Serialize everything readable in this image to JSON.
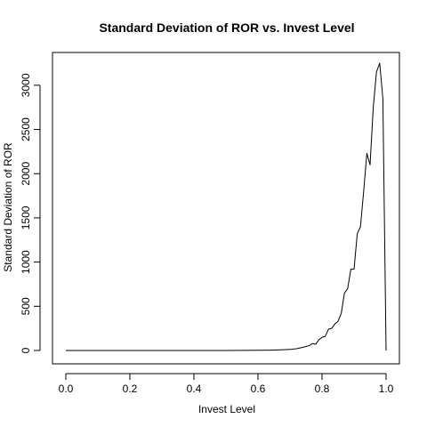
{
  "chart_data": {
    "type": "line",
    "title": "Standard Deviation of ROR vs. Invest Level",
    "xlabel": "Invest Level",
    "ylabel": "Standard Deviation of ROR",
    "xlim": [
      0.0,
      1.0
    ],
    "ylim": [
      0,
      3250
    ],
    "x_ticks": [
      "0.0",
      "0.2",
      "0.4",
      "0.6",
      "0.8",
      "1.0"
    ],
    "y_ticks": [
      "0",
      "500",
      "1000",
      "1500",
      "2000",
      "2500",
      "3000"
    ],
    "grid": false,
    "legend": "none",
    "series": [
      {
        "color": "#000000",
        "x": [
          0.0,
          0.1,
          0.2,
          0.3,
          0.4,
          0.5,
          0.55,
          0.6,
          0.64,
          0.66,
          0.68,
          0.7,
          0.72,
          0.74,
          0.76,
          0.77,
          0.78,
          0.79,
          0.8,
          0.81,
          0.82,
          0.83,
          0.84,
          0.85,
          0.86,
          0.87,
          0.88,
          0.89,
          0.9,
          0.91,
          0.92,
          0.93,
          0.94,
          0.95,
          0.96,
          0.97,
          0.98,
          0.99,
          1.0
        ],
        "y": [
          0,
          0,
          0,
          0,
          0,
          0,
          1,
          2,
          4,
          6,
          9,
          12,
          20,
          35,
          55,
          80,
          70,
          120,
          150,
          160,
          240,
          250,
          300,
          330,
          420,
          650,
          700,
          920,
          920,
          1320,
          1400,
          1800,
          2230,
          2100,
          2750,
          3150,
          3250,
          2850,
          0
        ]
      }
    ]
  }
}
